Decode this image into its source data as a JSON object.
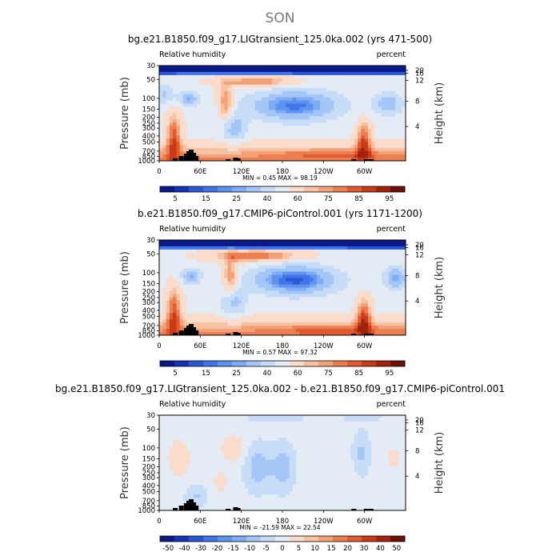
{
  "figure": {
    "season_title": "SON"
  },
  "chart_data": [
    {
      "type": "heatmap",
      "title": "bg.e21.B1850.f09_g17.LIGtransient_125.0ka.002 (yrs 471-500)",
      "left_label": "Relative humidity",
      "right_label": "percent",
      "ylabel": "Pressure (mb)",
      "y2label": "Height (km)",
      "xticks": [
        "0",
        "60E",
        "120E",
        "180",
        "120W",
        "60W"
      ],
      "yticks": [
        "30",
        "50",
        "100",
        "150",
        "200",
        "250",
        "300",
        "400",
        "500",
        "700",
        "850",
        "1000"
      ],
      "y2ticks": [
        "20",
        "16",
        "12",
        "8",
        "4"
      ],
      "stats": "MIN =     0.45   MAX =   98.19",
      "colorbar_labels": [
        "5",
        "15",
        "25",
        "40",
        "60",
        "75",
        "85",
        "95"
      ],
      "colorbar_levels": [
        0,
        5,
        10,
        15,
        20,
        25,
        30,
        40,
        50,
        60,
        70,
        75,
        80,
        85,
        90,
        95,
        100
      ]
    },
    {
      "type": "heatmap",
      "title": "b.e21.B1850.f09_g17.CMIP6-piControl.001 (yrs 1171-1200)",
      "left_label": "Relative humidity",
      "right_label": "percent",
      "ylabel": "Pressure (mb)",
      "y2label": "Height (km)",
      "xticks": [
        "0",
        "60E",
        "120E",
        "180",
        "120W",
        "60W"
      ],
      "yticks": [
        "30",
        "50",
        "100",
        "150",
        "200",
        "250",
        "300",
        "400",
        "500",
        "700",
        "850",
        "1000"
      ],
      "y2ticks": [
        "20",
        "16",
        "12",
        "8",
        "4"
      ],
      "stats": "MIN =     0.57   MAX =   97.32",
      "colorbar_labels": [
        "5",
        "15",
        "25",
        "40",
        "60",
        "75",
        "85",
        "95"
      ],
      "colorbar_levels": [
        0,
        5,
        10,
        15,
        20,
        25,
        30,
        40,
        50,
        60,
        70,
        75,
        80,
        85,
        90,
        95,
        100
      ]
    },
    {
      "type": "heatmap",
      "title": "bg.e21.B1850.f09_g17.LIGtransient_125.0ka.002 - b.e21.B1850.f09_g17.CMIP6-piControl.001",
      "left_label": "Relative humidity",
      "right_label": "percent",
      "ylabel": "Pressure (mb)",
      "y2label": "Height (km)",
      "xticks": [
        "0",
        "60E",
        "120E",
        "180",
        "120W",
        "60W"
      ],
      "yticks": [
        "30",
        "50",
        "100",
        "150",
        "200",
        "250",
        "300",
        "400",
        "500",
        "700",
        "850",
        "1000"
      ],
      "y2ticks": [
        "20",
        "16",
        "12",
        "8",
        "4"
      ],
      "stats": "MIN =   -21.59   MAX =   22.54",
      "colorbar_labels": [
        "-50",
        "-40",
        "-30",
        "-20",
        "-15",
        "-10",
        "-5",
        "0",
        "5",
        "10",
        "15",
        "20",
        "30",
        "40",
        "50"
      ],
      "colorbar_levels": [
        -60,
        -50,
        -40,
        -30,
        -20,
        -15,
        -10,
        -5,
        0,
        5,
        10,
        15,
        20,
        30,
        40,
        50,
        60
      ]
    }
  ],
  "palettes": {
    "humidity": [
      "#0a1a8a",
      "#1533b8",
      "#2a56d6",
      "#3f75e8",
      "#5d92f0",
      "#7eacf5",
      "#a3c6f7",
      "#c7dcf7",
      "#e3ebf5",
      "#f9dccb",
      "#f7c2a2",
      "#f3a278",
      "#ec7f52",
      "#e05a2e",
      "#c93a16",
      "#a3220b",
      "#6e0f05"
    ],
    "difference": [
      "#0a1a8a",
      "#1533b8",
      "#2a56d6",
      "#3f75e8",
      "#5d92f0",
      "#7eacf5",
      "#a3c6f7",
      "#c7dcf7",
      "#e3ebf5",
      "#f9dccb",
      "#f7c2a2",
      "#f3a278",
      "#ec7f52",
      "#e05a2e",
      "#c93a16",
      "#a3220b",
      "#6e0f05"
    ],
    "topography": "#000000"
  }
}
